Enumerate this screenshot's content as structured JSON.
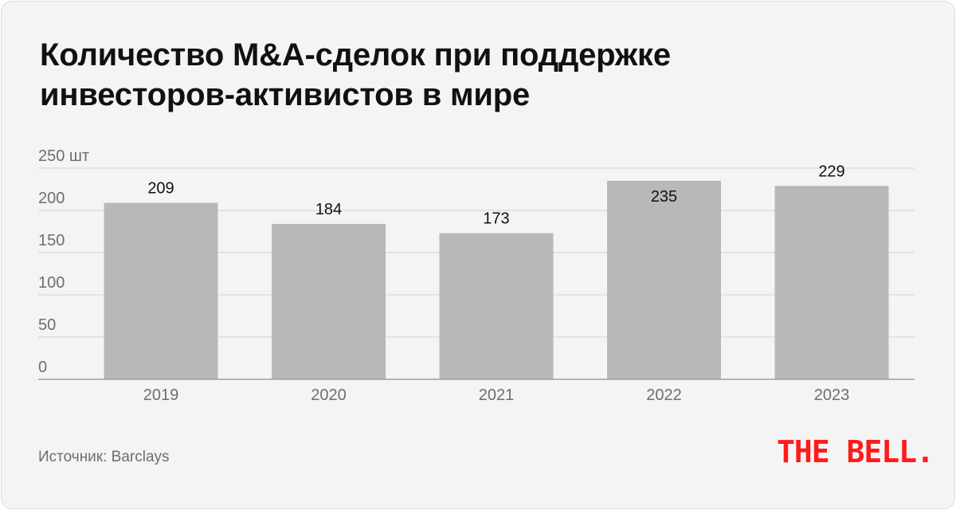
{
  "title_lines": [
    "Количество M&A-сделок при поддержке",
    "инвесторов-активистов в мире"
  ],
  "source": "Источник: Barclays",
  "logo_text": "THE BELL.",
  "colors": {
    "bar": "#b8b8b8",
    "grid": "#dddddd",
    "axis": "#a0a0a0",
    "logo": "#ff1a1a"
  },
  "chart_data": {
    "type": "bar",
    "title": "Количество M&A-сделок при поддержке инвесторов-активистов в мире",
    "categories": [
      "2019",
      "2020",
      "2021",
      "2022",
      "2023"
    ],
    "values": [
      209,
      184,
      173,
      235,
      229
    ],
    "data_labels": [
      "209",
      "184",
      "173",
      "235",
      "229"
    ],
    "ylim": [
      0,
      250
    ],
    "yticks": [
      0,
      50,
      100,
      150,
      200,
      250
    ],
    "ytick_labels": [
      "0",
      "50",
      "100",
      "150",
      "200",
      "250 шт"
    ],
    "xlabel": "",
    "ylabel": "",
    "grid": true,
    "legend": "none"
  }
}
